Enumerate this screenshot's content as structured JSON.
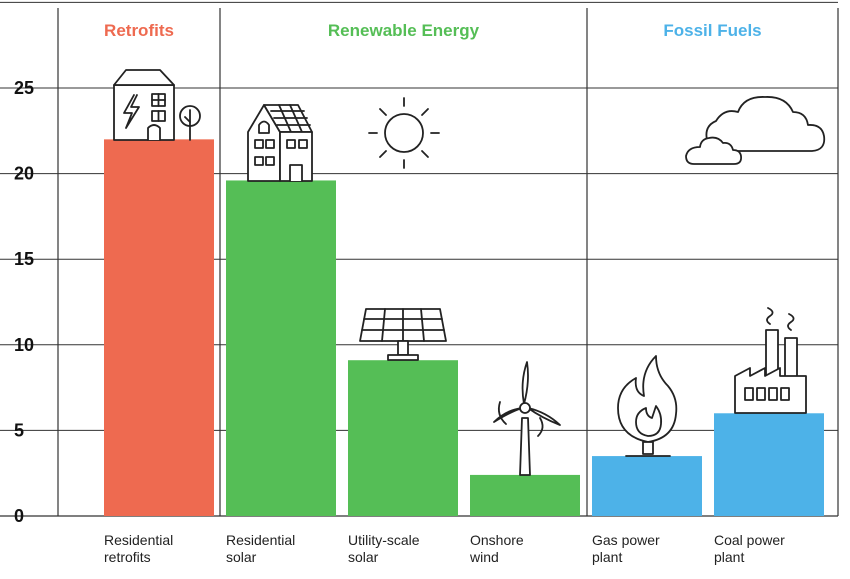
{
  "chart_data": {
    "type": "bar",
    "ylim": [
      0,
      30
    ],
    "yticks": [
      0,
      5,
      10,
      15,
      20,
      25
    ],
    "grid": true,
    "groups": [
      {
        "label": "Retrofits",
        "color": "#ee6a50"
      },
      {
        "label": "Renewable Energy",
        "color": "#55be56"
      },
      {
        "label": "Fossil Fuels",
        "color": "#4db2e8"
      }
    ],
    "categories": [
      {
        "line1": "Residential",
        "line2": "retrofits",
        "value": 22.0,
        "group": 0
      },
      {
        "line1": "Residential",
        "line2": "solar",
        "value": 19.6,
        "group": 1
      },
      {
        "line1": "Utility-scale",
        "line2": "solar",
        "value": 9.1,
        "group": 1
      },
      {
        "line1": "Onshore",
        "line2": "wind",
        "value": 2.4,
        "group": 1
      },
      {
        "line1": "Gas power",
        "line2": "plant",
        "value": 3.5,
        "group": 2
      },
      {
        "line1": "Coal power",
        "line2": "plant",
        "value": 6.0,
        "group": 2
      }
    ],
    "icons": [
      "house-lightning-icon",
      "solar-house-icon",
      "solar-panel-icon",
      "wind-turbine-icon",
      "gas-flame-icon",
      "factory-icon",
      "sun-icon",
      "cloud-icon"
    ]
  }
}
